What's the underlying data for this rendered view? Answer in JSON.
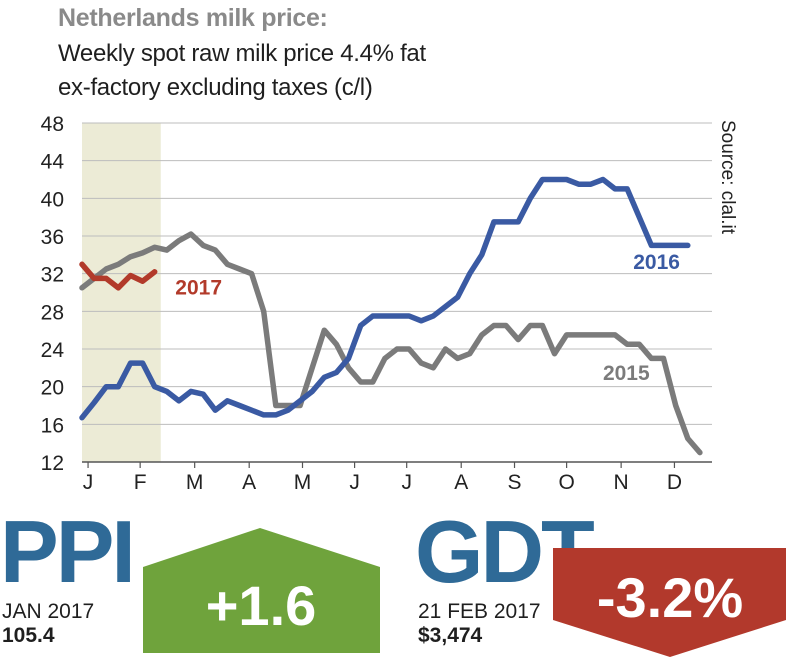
{
  "title": "Netherlands milk price:",
  "subtitle_line1": "Weekly spot raw milk price 4.4% fat",
  "subtitle_line2": "ex-factory excluding taxes (c/l)",
  "source": "Source: clal.it",
  "colors": {
    "s2016": "#3a5aa3",
    "s2015": "#7b7b7b",
    "s2017": "#b23a2a",
    "shade": "#ecebd6",
    "ppi": "#6fa33c",
    "gdt": "#b2392c",
    "headline": "#2f6a97"
  },
  "chart_data": {
    "type": "line",
    "title": "Netherlands milk price: Weekly spot raw milk price 4.4% fat ex-factory excluding taxes (c/l)",
    "xlabel": "",
    "ylabel": "c/l",
    "ylim": [
      12,
      48
    ],
    "yticks": [
      12,
      16,
      20,
      24,
      28,
      32,
      36,
      40,
      44,
      48
    ],
    "xlim": [
      0,
      52
    ],
    "month_ticks": [
      {
        "label": "J",
        "week": 0.5
      },
      {
        "label": "F",
        "week": 4.8
      },
      {
        "label": "M",
        "week": 9.3
      },
      {
        "label": "A",
        "week": 13.8
      },
      {
        "label": "M",
        "week": 18.2
      },
      {
        "label": "J",
        "week": 22.5
      },
      {
        "label": "J",
        "week": 26.8
      },
      {
        "label": "A",
        "week": 31.3
      },
      {
        "label": "S",
        "week": 35.7
      },
      {
        "label": "O",
        "week": 40.0
      },
      {
        "label": "N",
        "week": 44.5
      },
      {
        "label": "D",
        "week": 48.9
      }
    ],
    "shaded_weeks": [
      0,
      6.5
    ],
    "series": [
      {
        "name": "2016",
        "label_week": 45.5,
        "label_value": 32.5,
        "x": [
          0,
          1,
          2,
          3,
          4,
          5,
          6,
          7,
          8,
          9,
          10,
          11,
          12,
          13,
          14,
          15,
          16,
          17,
          18,
          19,
          20,
          21,
          22,
          23,
          24,
          25,
          26,
          27,
          28,
          29,
          30,
          31,
          32,
          33,
          34,
          35,
          36,
          37,
          38,
          39,
          40,
          41,
          42,
          43,
          44,
          45,
          46,
          47,
          48,
          49,
          50
        ],
        "values": [
          16.7,
          18.3,
          20.0,
          20.0,
          22.5,
          22.5,
          20.0,
          19.5,
          18.5,
          19.5,
          19.2,
          17.5,
          18.5,
          18.0,
          17.5,
          17.0,
          17.0,
          17.5,
          18.5,
          19.5,
          21.0,
          21.5,
          23.0,
          26.5,
          27.5,
          27.5,
          27.5,
          27.5,
          27.0,
          27.5,
          28.5,
          29.5,
          32.0,
          34.0,
          37.5,
          37.5,
          37.5,
          40.0,
          42.0,
          42.0,
          42.0,
          41.5,
          41.5,
          42.0,
          41.0,
          41.0,
          38.0,
          35.0,
          35.0,
          35.0,
          35.0
        ]
      },
      {
        "name": "2015",
        "label_week": 43.0,
        "label_value": 20.7,
        "x": [
          0,
          1,
          2,
          3,
          4,
          5,
          6,
          7,
          8,
          9,
          10,
          11,
          12,
          13,
          14,
          15,
          16,
          17,
          18,
          19,
          20,
          21,
          22,
          23,
          24,
          25,
          26,
          27,
          28,
          29,
          30,
          31,
          32,
          33,
          34,
          35,
          36,
          37,
          38,
          39,
          40,
          41,
          42,
          43,
          44,
          45,
          46,
          47,
          48,
          49,
          50,
          51
        ],
        "values": [
          30.5,
          31.5,
          32.5,
          33.0,
          33.8,
          34.2,
          34.8,
          34.5,
          35.5,
          36.2,
          35.0,
          34.5,
          33.0,
          32.5,
          32.0,
          28.0,
          18.0,
          18.0,
          18.0,
          22.0,
          26.0,
          24.5,
          22.0,
          20.5,
          20.5,
          23.0,
          24.0,
          24.0,
          22.5,
          22.0,
          24.0,
          23.0,
          23.5,
          25.5,
          26.5,
          26.5,
          25.0,
          26.5,
          26.5,
          23.5,
          25.5,
          25.5,
          25.5,
          25.5,
          25.5,
          24.5,
          24.5,
          23.0,
          23.0,
          18.0,
          14.5,
          13.0
        ]
      },
      {
        "name": "2017",
        "label_week": 7.7,
        "label_value": 29.8,
        "x": [
          0,
          1,
          2,
          3,
          4,
          5,
          6
        ],
        "values": [
          33.0,
          31.5,
          31.5,
          30.5,
          31.8,
          31.2,
          32.2
        ]
      }
    ]
  },
  "ppi": {
    "label": "PPI",
    "date": "JAN 2017",
    "value": "105.4",
    "change": "+1.6"
  },
  "gdt": {
    "label": "GDT",
    "date": "21 FEB 2017",
    "value": "$3,474",
    "change": "-3.2%"
  }
}
